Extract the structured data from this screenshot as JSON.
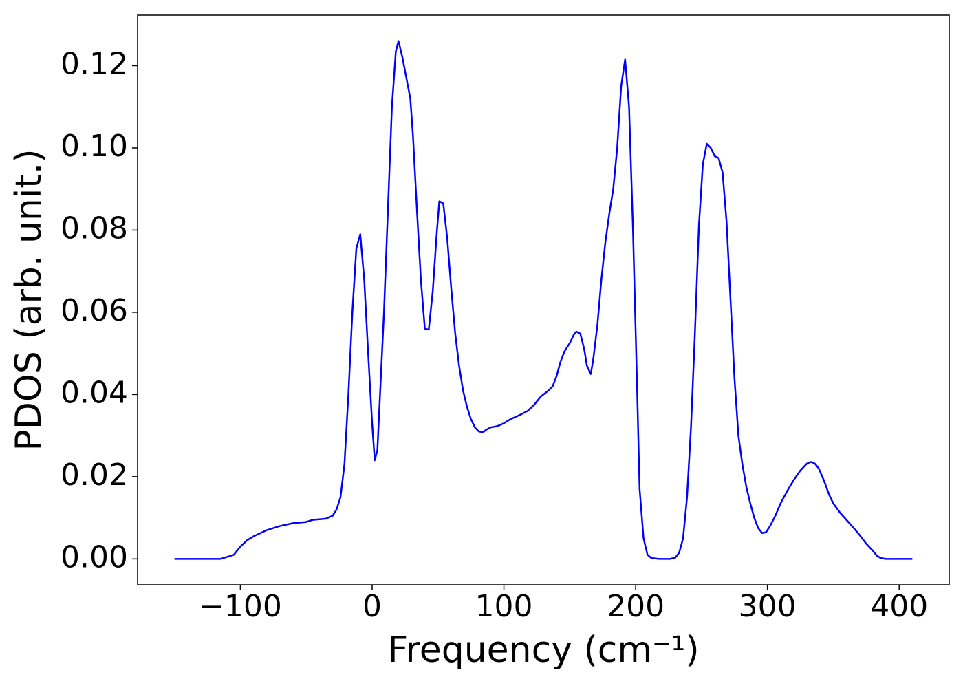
{
  "chart_data": {
    "type": "line",
    "xlabel": "Frequency (cm⁻¹)",
    "ylabel": "PDOS (arb. unit.)",
    "x": [
      -150,
      -115,
      -105,
      -100,
      -95,
      -90,
      -80,
      -70,
      -60,
      -50,
      -45,
      -35,
      -30,
      -27,
      -24,
      -21,
      -18,
      -15,
      -12,
      -9,
      -6,
      -3,
      0,
      2,
      4,
      6,
      9,
      12,
      15,
      18,
      20,
      23,
      26,
      29,
      31,
      34,
      37,
      40,
      43,
      46,
      49,
      51,
      54,
      57,
      60,
      63,
      66,
      69,
      72,
      75,
      78,
      81,
      84,
      87,
      90,
      95,
      100,
      105,
      112,
      118,
      123,
      128,
      134,
      137,
      140,
      143,
      146,
      150,
      153,
      155,
      158,
      161,
      163,
      166,
      168,
      171,
      174,
      177,
      180,
      183,
      186,
      189,
      192,
      195,
      198,
      201,
      203,
      206,
      209,
      212,
      218,
      226,
      230,
      233,
      236,
      239,
      242,
      245,
      248,
      251,
      254,
      257,
      260,
      263,
      266,
      269,
      272,
      275,
      278,
      281,
      284,
      287,
      290,
      293,
      296,
      299,
      302,
      306,
      310,
      315,
      320,
      325,
      330,
      333,
      336,
      339,
      343,
      347,
      350,
      355,
      360,
      365,
      370,
      375,
      380,
      383,
      386,
      390,
      410
    ],
    "series": [
      {
        "color": "#0000ff",
        "values": [
          0,
          0,
          0.001,
          0.003,
          0.0045,
          0.0055,
          0.007,
          0.008,
          0.0087,
          0.009,
          0.0095,
          0.0098,
          0.0105,
          0.012,
          0.015,
          0.023,
          0.04,
          0.06,
          0.0755,
          0.079,
          0.068,
          0.05,
          0.033,
          0.024,
          0.0265,
          0.04,
          0.06,
          0.085,
          0.11,
          0.1235,
          0.126,
          0.122,
          0.117,
          0.112,
          0.103,
          0.085,
          0.068,
          0.056,
          0.0558,
          0.065,
          0.079,
          0.087,
          0.0865,
          0.078,
          0.066,
          0.055,
          0.047,
          0.041,
          0.037,
          0.034,
          0.032,
          0.031,
          0.0308,
          0.0315,
          0.032,
          0.0323,
          0.033,
          0.034,
          0.035,
          0.036,
          0.0375,
          0.0395,
          0.041,
          0.042,
          0.0445,
          0.048,
          0.0505,
          0.0525,
          0.0545,
          0.0553,
          0.0548,
          0.051,
          0.047,
          0.045,
          0.049,
          0.057,
          0.068,
          0.077,
          0.084,
          0.09,
          0.1,
          0.115,
          0.1215,
          0.11,
          0.08,
          0.043,
          0.017,
          0.005,
          0.001,
          0.0002,
          0,
          0,
          0.0003,
          0.0015,
          0.005,
          0.015,
          0.032,
          0.055,
          0.081,
          0.096,
          0.101,
          0.1,
          0.098,
          0.0975,
          0.094,
          0.082,
          0.063,
          0.044,
          0.03,
          0.023,
          0.0175,
          0.0135,
          0.01,
          0.0075,
          0.0063,
          0.0065,
          0.008,
          0.0105,
          0.0135,
          0.0165,
          0.0192,
          0.0215,
          0.0232,
          0.0236,
          0.0232,
          0.022,
          0.019,
          0.0155,
          0.0135,
          0.0113,
          0.0095,
          0.0077,
          0.0058,
          0.0037,
          0.002,
          0.0008,
          0.0002,
          0,
          0
        ]
      }
    ],
    "xlim": [
      -178,
      438
    ],
    "ylim": [
      -0.0063,
      0.1323
    ],
    "xticks": [
      {
        "value": -100,
        "label": "−100"
      },
      0,
      100,
      200,
      300,
      400
    ],
    "yticks": [
      {
        "value": 0,
        "label": "0.00"
      },
      {
        "value": 0.02,
        "label": "0.02"
      },
      {
        "value": 0.04,
        "label": "0.04"
      },
      {
        "value": 0.06,
        "label": "0.06"
      },
      {
        "value": 0.08,
        "label": "0.08"
      },
      {
        "value": 0.1,
        "label": "0.10"
      },
      {
        "value": 0.12,
        "label": "0.12"
      }
    ],
    "grid": false
  }
}
